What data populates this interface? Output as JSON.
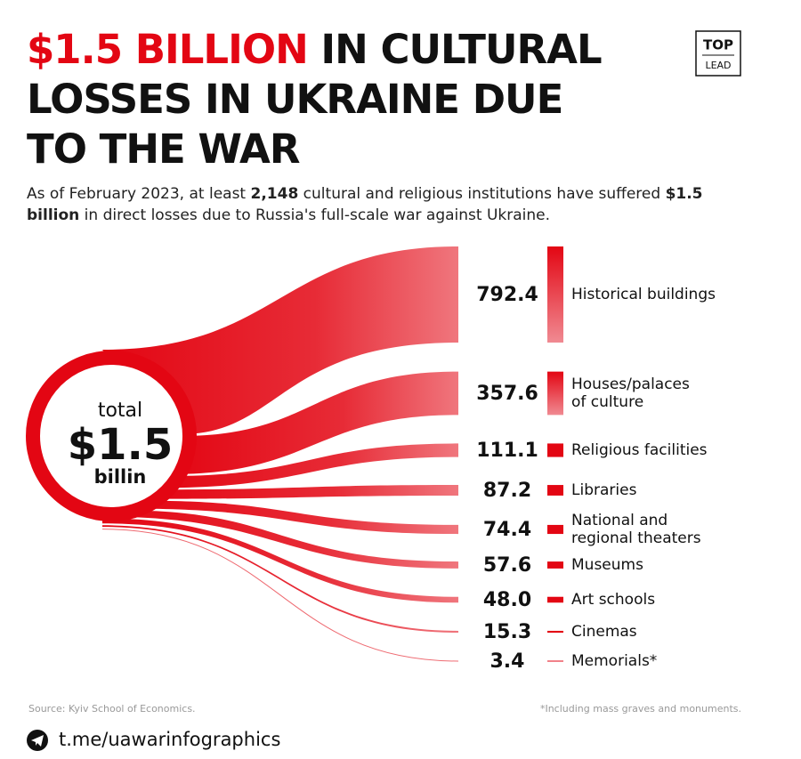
{
  "chart_data": {
    "type": "sankey",
    "title_highlight": "$1.5 BILLION",
    "title_lines": [
      "IN CULTURAL",
      "LOSSES IN UKRAINE DUE",
      "TO THE WAR"
    ],
    "subtitle": [
      "As of February 2023, at least ",
      "2,148",
      " cultural and religious institutions have suffered ",
      "$1.5 billion",
      " in direct losses due to Russia's full-scale war against Ukraine."
    ],
    "subtitle_bold": [
      false,
      true,
      false,
      true,
      false
    ],
    "logo": [
      "TOP",
      "LEAD"
    ],
    "total": {
      "caption": "total",
      "value": "$1.5",
      "unit": "billin"
    },
    "categories": [
      "Historical buildings",
      "Houses/palaces\nof culture",
      "Religious facilities",
      "Libraries",
      "National and\nregional theaters",
      "Museums",
      "Art schools",
      "Cinemas",
      "Memorials*"
    ],
    "values": [
      792.4,
      357.6,
      111.1,
      87.2,
      74.4,
      57.6,
      48.0,
      15.3,
      3.4
    ],
    "value_labels": [
      "792.4",
      "357.6",
      "111.1",
      "87.2",
      "74.4",
      "57.6",
      "48.0",
      "15.3",
      "3.4"
    ],
    "color": "#e30613",
    "source": "Source: Kyiv School of Economics.",
    "footnote": "*Including mass graves and monuments.",
    "link": "t.me/uawarinfographics"
  }
}
